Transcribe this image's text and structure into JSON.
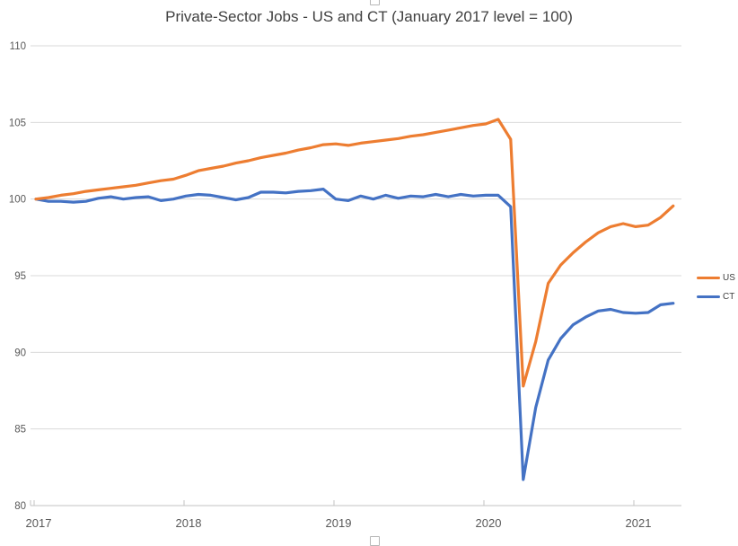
{
  "page": {
    "background": "#ffffff"
  },
  "chart_data": {
    "type": "line",
    "title": "Private-Sector Jobs - US and CT (January 2017 level = 100)",
    "months": [
      "2017-01",
      "2017-02",
      "2017-03",
      "2017-04",
      "2017-05",
      "2017-06",
      "2017-07",
      "2017-08",
      "2017-09",
      "2017-10",
      "2017-11",
      "2017-12",
      "2018-01",
      "2018-02",
      "2018-03",
      "2018-04",
      "2018-05",
      "2018-06",
      "2018-07",
      "2018-08",
      "2018-09",
      "2018-10",
      "2018-11",
      "2018-12",
      "2019-01",
      "2019-02",
      "2019-03",
      "2019-04",
      "2019-05",
      "2019-06",
      "2019-07",
      "2019-08",
      "2019-09",
      "2019-10",
      "2019-11",
      "2019-12",
      "2020-01",
      "2020-02",
      "2020-03",
      "2020-04",
      "2020-05",
      "2020-06",
      "2020-07",
      "2020-08",
      "2020-09",
      "2020-10",
      "2020-11",
      "2020-12",
      "2021-01",
      "2021-02",
      "2021-03",
      "2021-04"
    ],
    "series": [
      {
        "name": "US",
        "color": "#ED7D31",
        "values": [
          100,
          100.1,
          100.25,
          100.35,
          100.5,
          100.6,
          100.7,
          100.8,
          100.9,
          101.05,
          101.2,
          101.3,
          101.55,
          101.85,
          102.0,
          102.15,
          102.35,
          102.5,
          102.7,
          102.85,
          103.0,
          103.2,
          103.35,
          103.55,
          103.6,
          103.5,
          103.65,
          103.75,
          103.85,
          103.95,
          104.1,
          104.2,
          104.35,
          104.5,
          104.65,
          104.8,
          104.9,
          105.2,
          103.9,
          87.8,
          90.7,
          94.5,
          95.7,
          96.5,
          97.2,
          97.8,
          98.2,
          98.4,
          98.2,
          98.3,
          98.8,
          99.55
        ]
      },
      {
        "name": "CT",
        "color": "#4472C4",
        "values": [
          100,
          99.85,
          99.85,
          99.8,
          99.85,
          100.05,
          100.15,
          100.0,
          100.1,
          100.15,
          99.9,
          100.0,
          100.2,
          100.3,
          100.25,
          100.1,
          99.95,
          100.1,
          100.45,
          100.45,
          100.4,
          100.5,
          100.55,
          100.65,
          100.0,
          99.9,
          100.2,
          100.0,
          100.25,
          100.05,
          100.2,
          100.15,
          100.3,
          100.15,
          100.3,
          100.2,
          100.25,
          100.25,
          99.5,
          81.7,
          86.4,
          89.5,
          90.9,
          91.8,
          92.3,
          92.7,
          92.8,
          92.6,
          92.55,
          92.6,
          93.1,
          93.2
        ]
      }
    ],
    "ylim": [
      80,
      110
    ],
    "yticks": [
      80,
      85,
      90,
      95,
      100,
      105,
      110
    ],
    "xtick_years": [
      "2017",
      "2018",
      "2019",
      "2020",
      "2021"
    ],
    "grid": "horizontal-only",
    "legend_position": "right-middle",
    "colors": {
      "gridline": "#D9D9D9",
      "axis": "#C3C3C3",
      "tick_label": "#595959",
      "title": "#404040",
      "legend_text": "#404040"
    }
  }
}
